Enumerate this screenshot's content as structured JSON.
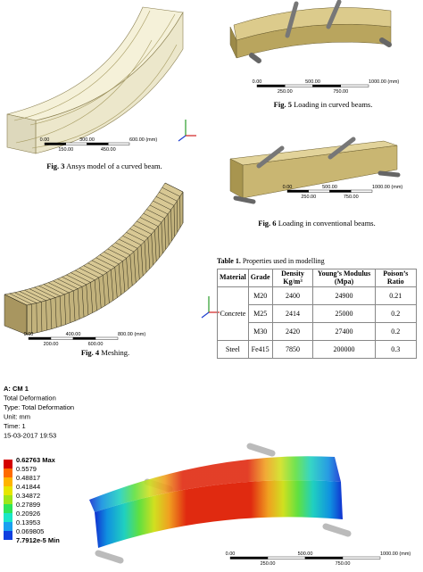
{
  "figures": [
    {
      "label": "Fig. 3",
      "text": "Ansys model of a curved beam.",
      "scale": {
        "top": [
          "0.00",
          "300.00",
          "600.00 (mm)"
        ],
        "bottom": [
          "150.00",
          "450.00"
        ]
      }
    },
    {
      "label": "Fig. 5",
      "text": "Loading in curved beams.",
      "scale": {
        "top": [
          "0.00",
          "500.00",
          "1000.00 (mm)"
        ],
        "bottom": [
          "250.00",
          "750.00"
        ]
      }
    },
    {
      "label": "Fig. 6",
      "text": "Loading in conventional beams.",
      "scale": {
        "top": [
          "0.00",
          "500.00",
          "1000.00 (mm)"
        ],
        "bottom": [
          "250.00",
          "750.00"
        ]
      }
    },
    {
      "label": "Fig. 4",
      "text": "Meshing.",
      "scale": {
        "top": [
          "0.00",
          "400.00",
          "800.00 (mm)"
        ],
        "bottom": [
          "200.00",
          "600.00"
        ]
      }
    }
  ],
  "table": {
    "label": "Table 1.",
    "title": "Properties used in modelling",
    "headers": [
      "Material",
      "Grade",
      "Density Kg/m³",
      "Young’s Modulus (Mpa)",
      "Poison’s Ratio"
    ],
    "groups": [
      {
        "material": "Concrete",
        "rows": [
          [
            "M20",
            "2400",
            "24900",
            "0.21"
          ],
          [
            "M25",
            "2414",
            "25000",
            "0.2"
          ],
          [
            "M30",
            "2420",
            "27400",
            "0.2"
          ]
        ]
      },
      {
        "material": "Steel",
        "rows": [
          [
            "Fe415",
            "7850",
            "200000",
            "0.3"
          ]
        ]
      }
    ]
  },
  "result": {
    "header": [
      "A: CM 1",
      "Total Deformation",
      "Type: Total Deformation",
      "Unit: mm",
      "Time: 1",
      "15-03-2017 19:53"
    ],
    "legend": [
      "0.62763 Max",
      "0.5579",
      "0.48817",
      "0.41844",
      "0.34872",
      "0.27899",
      "0.20926",
      "0.13953",
      "0.069805",
      "7.7912e-5 Min"
    ],
    "scale": {
      "top": [
        "0.00",
        "500.00",
        "1000.00 (mm)"
      ],
      "bottom": [
        "250.00",
        "750.00"
      ]
    }
  }
}
